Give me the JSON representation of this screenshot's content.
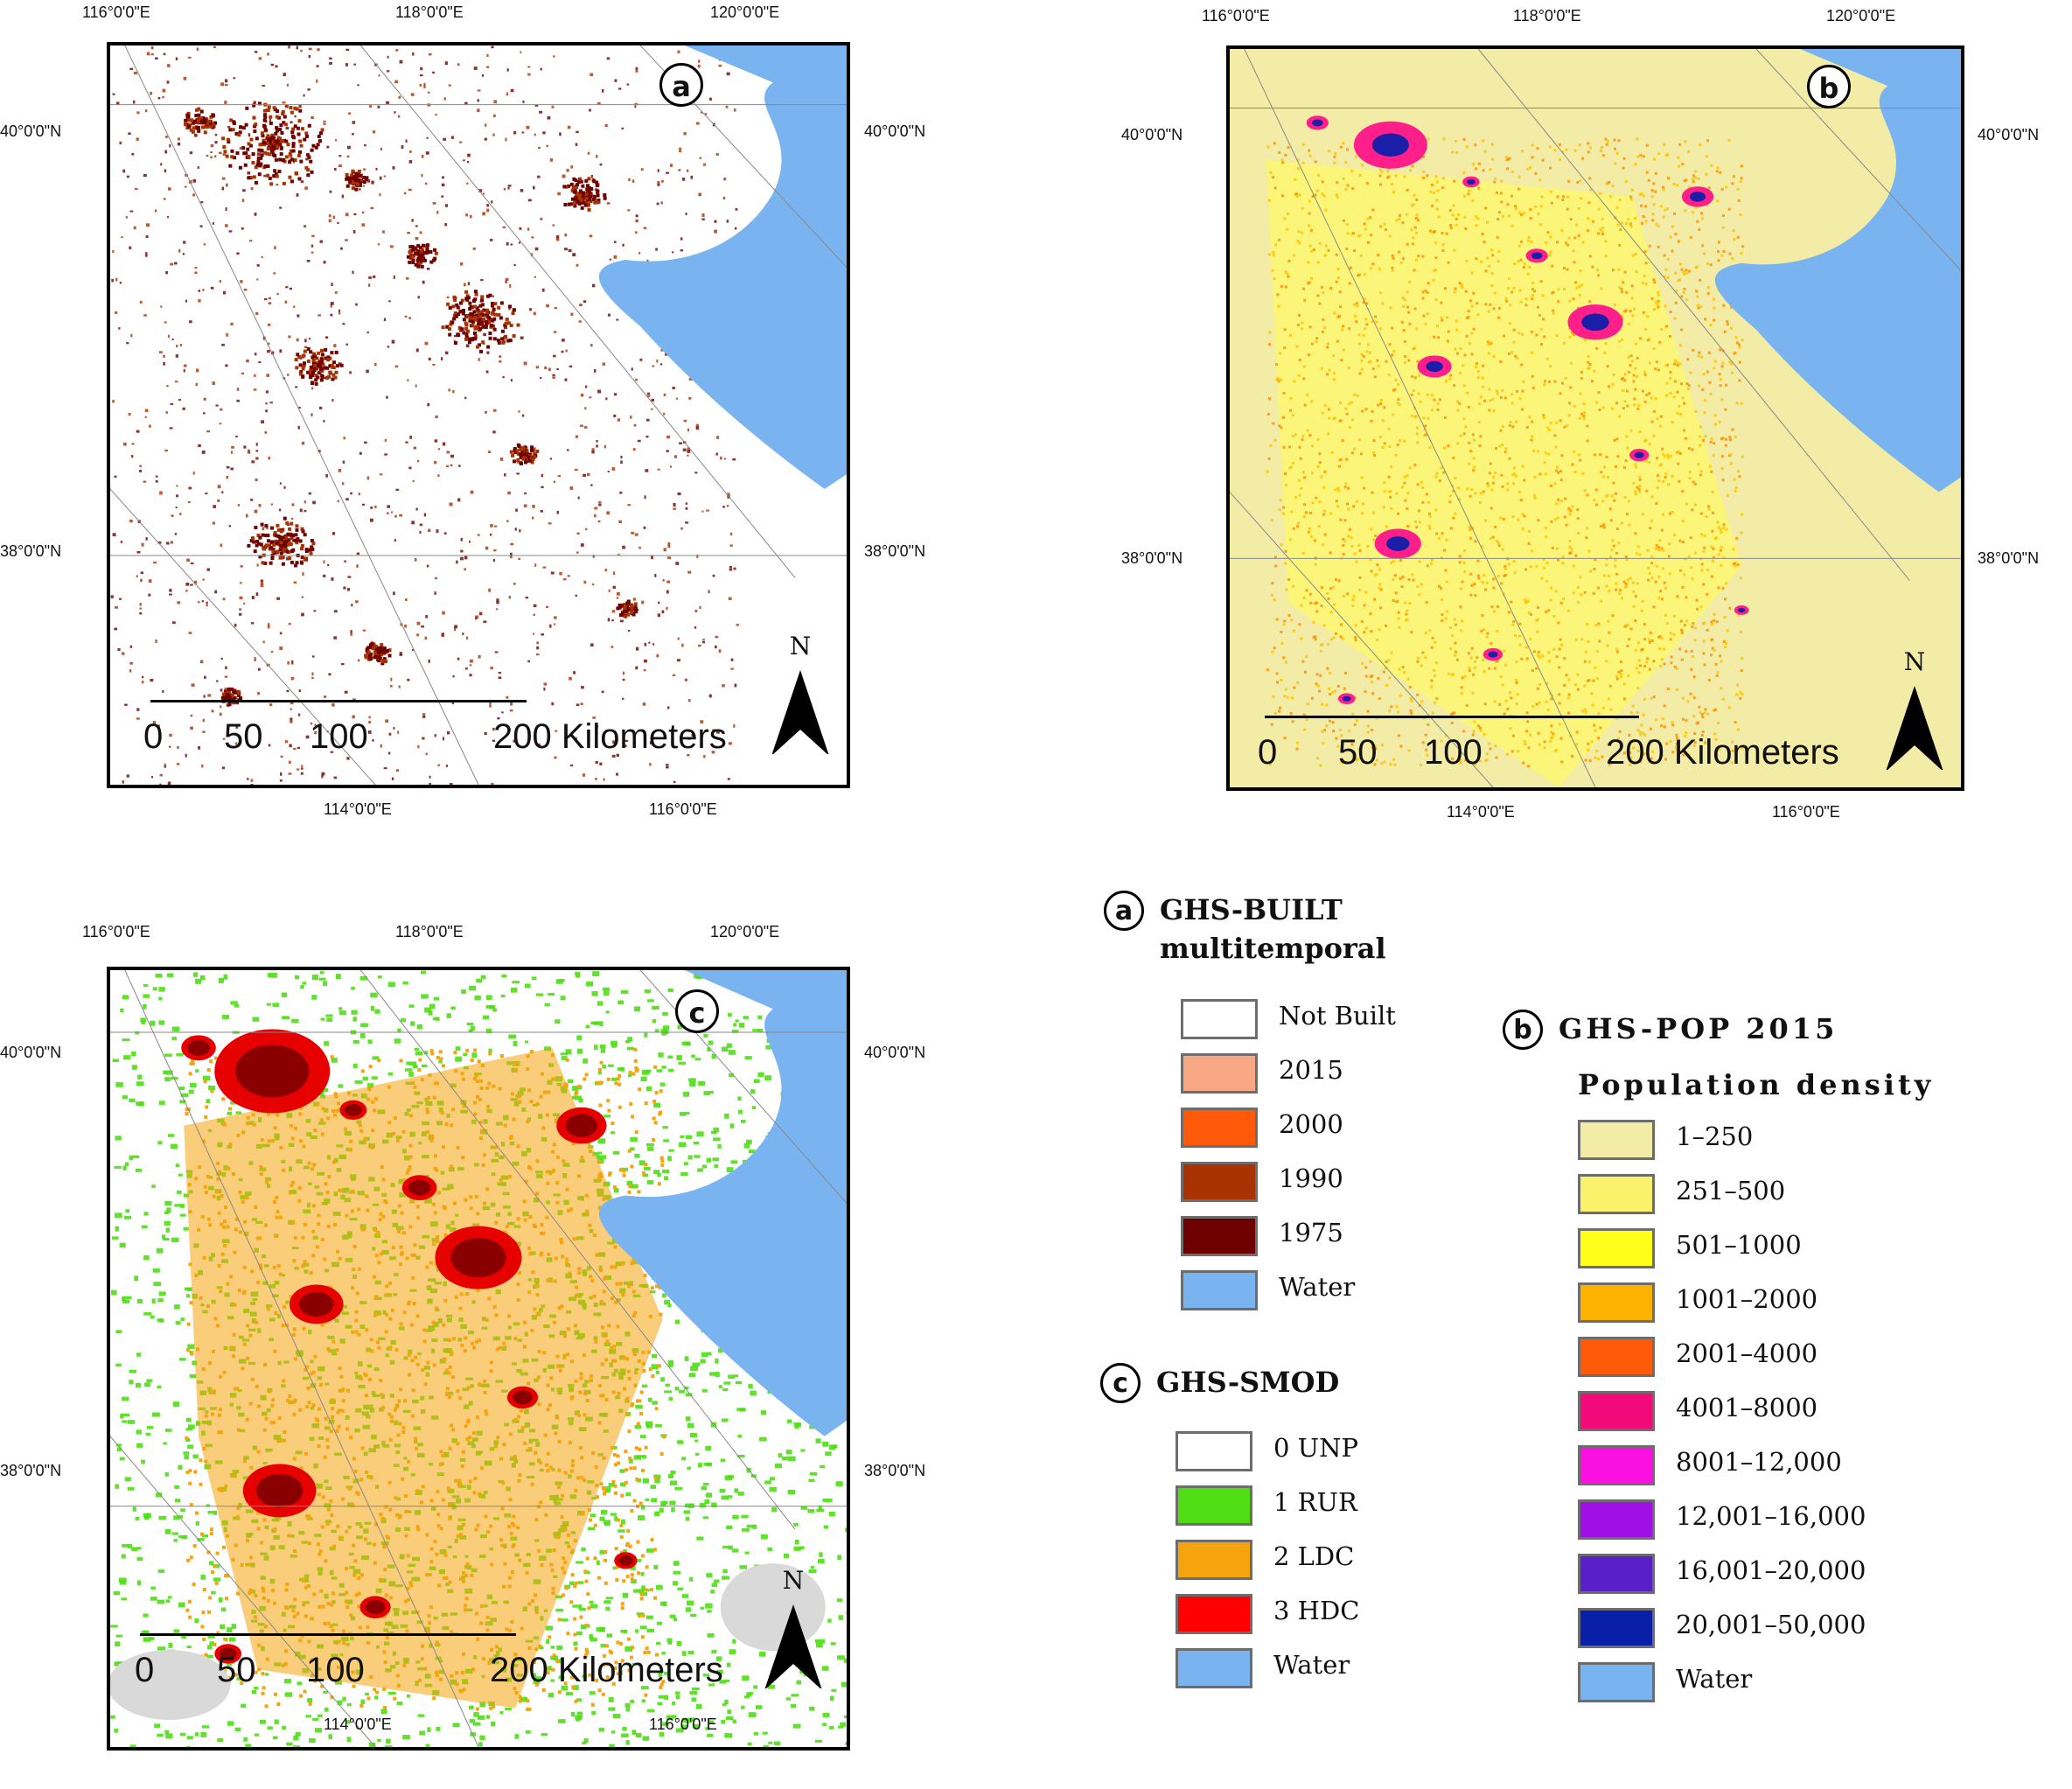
{
  "panels": [
    {
      "id": "a",
      "letter": "a",
      "lon_top": [
        "116°0'0\"E",
        "118°0'0\"E",
        "120°0'0\"E"
      ],
      "lon_bottom": [
        "114°0'0\"E",
        "116°0'0\"E"
      ],
      "lat_left": [
        "40°0'0\"N",
        "38°0'0\"N"
      ],
      "lat_right": [
        "40°0'0\"N",
        "38°0'0\"N"
      ],
      "scale_labels": [
        "0",
        "50",
        "100",
        "200 Kilometers"
      ],
      "north_label": "N",
      "colors": {
        "background": "#ffffff",
        "water": "#79b4f0",
        "urban_dark": "#6e0000",
        "urban_mid": "#a83300",
        "urban_light": "#f5a07a"
      }
    },
    {
      "id": "b",
      "letter": "b",
      "lon_top": [
        "116°0'0\"E",
        "118°0'0\"E",
        "120°0'0\"E"
      ],
      "lon_bottom": [
        "114°0'0\"E",
        "116°0'0\"E"
      ],
      "lat_left": [
        "40°0'0\"N",
        "38°0'0\"N"
      ],
      "lat_right": [
        "40°0'0\"N",
        "38°0'0\"N"
      ],
      "scale_labels": [
        "0",
        "50",
        "100",
        "200 Kilometers"
      ],
      "north_label": "N",
      "colors": {
        "background": "#f2eca6",
        "low": "#fbf57a",
        "mid": "#fec400",
        "high": "#ff1f8a",
        "very_high": "#1b1fa8",
        "water": "#79b4f0"
      }
    },
    {
      "id": "c",
      "letter": "c",
      "lon_top": [
        "116°0'0\"E",
        "118°0'0\"E",
        "120°0'0\"E"
      ],
      "lon_bottom": [
        "114°0'0\"E",
        "116°0'0\"E"
      ],
      "lat_left": [
        "40°0'0\"N",
        "38°0'0\"N"
      ],
      "lat_right": [
        "40°0'0\"N",
        "38°0'0\"N"
      ],
      "scale_labels": [
        "0",
        "50",
        "100",
        "200 Kilometers"
      ],
      "north_label": "N",
      "colors": {
        "background": "#ffffff",
        "rural": "#4fde14",
        "ldc": "#f5a40e",
        "hdc": "#e60000",
        "hdc_dark": "#8a0000",
        "water": "#79b4f0",
        "grey": "#d9d9d9"
      }
    }
  ],
  "legend_a": {
    "letter": "a",
    "title_line1": "GHS-BUILT",
    "title_line2": "multitemporal",
    "items": [
      {
        "label": "Not Built",
        "color": "#ffffff"
      },
      {
        "label": "2015",
        "color": "#f9a885"
      },
      {
        "label": "2000",
        "color": "#ff5a0a"
      },
      {
        "label": "1990",
        "color": "#a83300"
      },
      {
        "label": "1975",
        "color": "#6e0000"
      },
      {
        "label": "Water",
        "color": "#79b4f0"
      }
    ]
  },
  "legend_c": {
    "letter": "c",
    "title": "GHS-SMOD",
    "items": [
      {
        "label": "0 UNP",
        "color": "#ffffff"
      },
      {
        "label": "1 RUR",
        "color": "#4fde14"
      },
      {
        "label": "2 LDC",
        "color": "#f5a40e"
      },
      {
        "label": "3 HDC",
        "color": "#ff0000"
      },
      {
        "label": "Water",
        "color": "#79b4f0"
      }
    ]
  },
  "legend_b": {
    "letter": "b",
    "title": "GHS-POP 2015",
    "subtitle": "Population density",
    "items": [
      {
        "label": "1–250",
        "color": "#f2eca6"
      },
      {
        "label": "251–500",
        "color": "#fbf26c"
      },
      {
        "label": "501–1000",
        "color": "#ffff1a"
      },
      {
        "label": "1001–2000",
        "color": "#fdb100"
      },
      {
        "label": "2001–4000",
        "color": "#ff5a0a"
      },
      {
        "label": "4001–8000",
        "color": "#f20a7a"
      },
      {
        "label": "8001–12,000",
        "color": "#fa10e0"
      },
      {
        "label": "12,001–16,000",
        "color": "#a010e6"
      },
      {
        "label": "16,001–20,000",
        "color": "#5a20c8"
      },
      {
        "label": "20,001–50,000",
        "color": "#0a1fa8"
      },
      {
        "label": "Water",
        "color": "#79b4f0"
      }
    ]
  }
}
